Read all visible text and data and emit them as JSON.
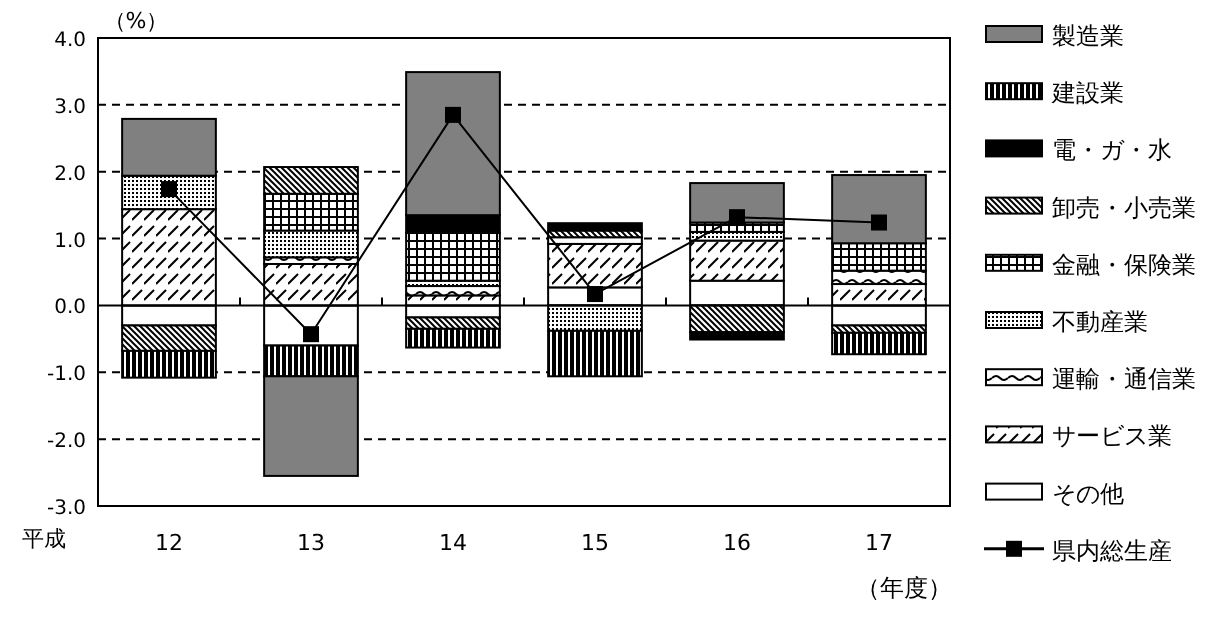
{
  "chart_data": {
    "type": "bar",
    "stacked": true,
    "ylabel": "（%）",
    "xlabel": "（年度）",
    "annotations": [
      "平成"
    ],
    "categories": [
      "12",
      "13",
      "14",
      "15",
      "16",
      "17"
    ],
    "ylim": [
      -3,
      4
    ],
    "yticks": [
      {
        "value": -3,
        "label": "-3.0"
      },
      {
        "value": -2,
        "label": "-2.0"
      },
      {
        "value": -1,
        "label": "-1.0"
      },
      {
        "value": 0,
        "label": "0.0"
      },
      {
        "value": 1,
        "label": "1.0"
      },
      {
        "value": 2,
        "label": "2.0"
      },
      {
        "value": 3,
        "label": "3.0"
      },
      {
        "value": 4,
        "label": "4.0"
      }
    ],
    "grid": "y",
    "legend": "right",
    "series": [
      {
        "name": "その他",
        "color": "#ffffff",
        "values": [
          -0.3,
          -0.6,
          -0.18,
          0.27,
          0.37,
          -0.3
        ]
      },
      {
        "name": "サービス業",
        "color": "#000000",
        "values": [
          1.44,
          0.62,
          0.15,
          0.65,
          0.6,
          0.32
        ]
      },
      {
        "name": "運輸・通信業",
        "color": "#000000",
        "values": [
          null,
          0.1,
          0.14,
          0.1,
          null,
          0.2
        ]
      },
      {
        "name": "不動産業",
        "color": "#000000",
        "values": [
          0.5,
          0.4,
          0.08,
          -0.38,
          0.13,
          null
        ]
      },
      {
        "name": "金融・保険業",
        "color": "#000000",
        "values": [
          null,
          0.55,
          0.72,
          null,
          0.14,
          0.41
        ]
      },
      {
        "name": "卸売・小売業",
        "color": "#000000",
        "values": [
          -0.38,
          0.4,
          -0.17,
          0.1,
          -0.4,
          -0.11
        ]
      },
      {
        "name": "電・ガ・水",
        "color": "#000000",
        "values": [
          null,
          null,
          0.26,
          0.11,
          -0.11,
          null
        ]
      },
      {
        "name": "建設業",
        "color": "#000000",
        "values": [
          -0.4,
          -0.46,
          -0.28,
          -0.68,
          null,
          -0.32
        ]
      },
      {
        "name": "製造業",
        "color": "#808080",
        "values": [
          0.85,
          -1.49,
          2.14,
          null,
          0.59,
          1.02
        ]
      },
      {
        "name": "県内総生産",
        "type": "line",
        "marker": "square",
        "color": "#000000",
        "values": [
          1.74,
          -0.43,
          2.85,
          0.17,
          1.32,
          1.24
        ]
      }
    ]
  }
}
